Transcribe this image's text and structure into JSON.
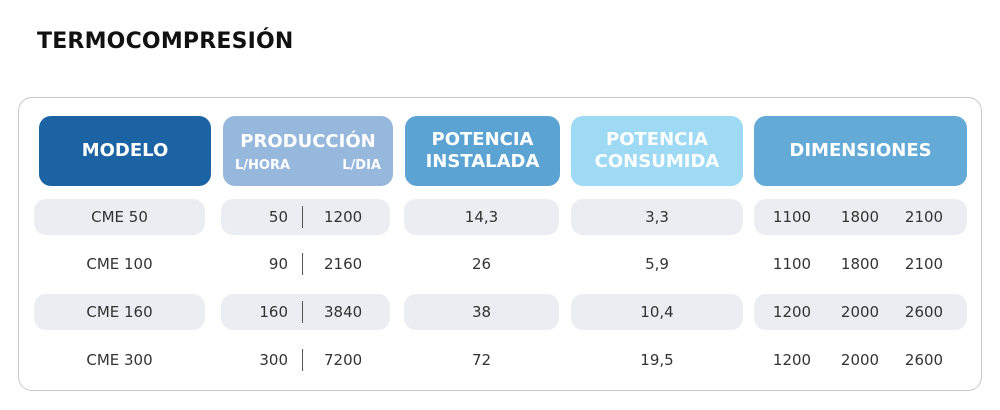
{
  "title": "TERMOCOMPRESIÓN",
  "headers": {
    "modelo": "MODELO",
    "produccion": "PRODUCCIÓN",
    "produccion_sub1": "L/HORA",
    "produccion_sub2": "L/DIA",
    "potencia_instalada_1": "POTENCIA",
    "potencia_instalada_2": "INSTALADA",
    "potencia_consumida_1": "POTENCIA",
    "potencia_consumida_2": "CONSUMIDA",
    "dimensiones": "DIMENSIONES"
  },
  "header_colors": {
    "modelo": "#1b63a3",
    "produccion": "#96b8dd",
    "potencia_instalada": "#5aa3d3",
    "potencia_consumida": "#9fdaf5",
    "dimensiones": "#63abd6"
  },
  "rows": [
    {
      "modelo": "CME 50",
      "l_hora": "50",
      "l_dia": "1200",
      "potencia_instalada": "14,3",
      "potencia_consumida": "3,3",
      "dim1": "1100",
      "dim2": "1800",
      "dim3": "2100"
    },
    {
      "modelo": "CME 100",
      "l_hora": "90",
      "l_dia": "2160",
      "potencia_instalada": "26",
      "potencia_consumida": "5,9",
      "dim1": "1100",
      "dim2": "1800",
      "dim3": "2100"
    },
    {
      "modelo": "CME 160",
      "l_hora": "160",
      "l_dia": "3840",
      "potencia_instalada": "38",
      "potencia_consumida": "10,4",
      "dim1": "1200",
      "dim2": "2000",
      "dim3": "2600"
    },
    {
      "modelo": "CME 300",
      "l_hora": "300",
      "l_dia": "7200",
      "potencia_instalada": "72",
      "potencia_consumida": "19,5",
      "dim1": "1200",
      "dim2": "2000",
      "dim3": "2600"
    }
  ]
}
